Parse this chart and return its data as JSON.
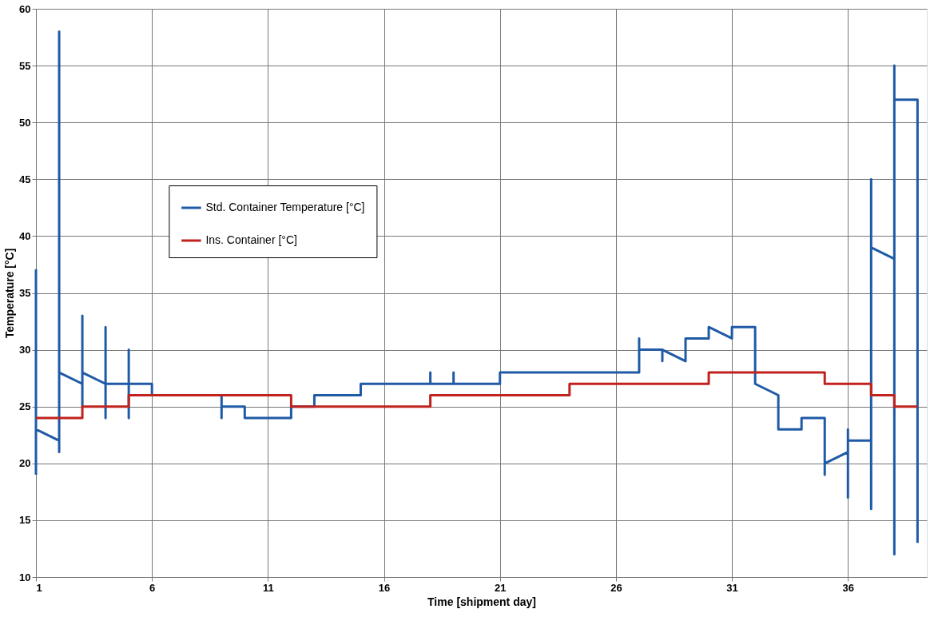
{
  "chart_data": {
    "type": "line",
    "xlabel": "Time [shipment day]",
    "ylabel": "Temperature [°C]",
    "xlim": [
      1,
      39.4
    ],
    "xticks": [
      1,
      6,
      11,
      16,
      21,
      26,
      31,
      36
    ],
    "ylim": [
      10,
      60
    ],
    "yticks": [
      10,
      15,
      20,
      25,
      30,
      35,
      40,
      45,
      50,
      55,
      60
    ],
    "grid": true,
    "legend": "left",
    "marker": "none",
    "line_style": "solid",
    "series": [
      {
        "name": "Std. Container Temperature [°C]",
        "color": "#1f5aa6",
        "x": [
          1,
          1,
          1,
          2,
          2,
          2,
          2,
          3,
          3,
          3,
          3,
          4,
          4,
          4,
          4,
          5,
          5,
          5,
          5,
          6,
          6,
          9,
          9,
          9,
          10,
          10,
          12,
          12,
          13,
          13,
          15,
          15,
          18,
          18,
          18,
          19,
          19,
          19,
          21,
          21,
          27,
          27,
          27,
          28,
          28,
          28,
          29,
          29,
          30,
          30,
          31,
          31,
          32,
          32,
          33,
          33,
          34,
          34,
          35,
          35,
          35,
          36,
          36,
          36,
          36,
          37,
          37,
          37,
          37,
          38,
          38,
          38,
          38,
          39,
          39
        ],
        "values": [
          19,
          37,
          23,
          22,
          21,
          58,
          28,
          27,
          25,
          33,
          28,
          27,
          24,
          32,
          27,
          27,
          24,
          30,
          27,
          27,
          26,
          26,
          24,
          25,
          25,
          24,
          24,
          25,
          25,
          26,
          26,
          27,
          27,
          28,
          27,
          27,
          28,
          27,
          27,
          28,
          28,
          31,
          30,
          30,
          29,
          30,
          29,
          31,
          31,
          32,
          31,
          32,
          32,
          27,
          26,
          23,
          23,
          24,
          24,
          19,
          20,
          21,
          17,
          23,
          22,
          22,
          16,
          45,
          39,
          38,
          12,
          55,
          52,
          52,
          13
        ]
      },
      {
        "name": "Ins. Container [°C]",
        "color": "#c0221e",
        "type": "step",
        "x": [
          1,
          3,
          5,
          12,
          18,
          24,
          30,
          35,
          37,
          38,
          39
        ],
        "values": [
          24,
          25,
          26,
          25,
          26,
          27,
          28,
          27,
          26,
          25,
          25
        ]
      }
    ]
  }
}
